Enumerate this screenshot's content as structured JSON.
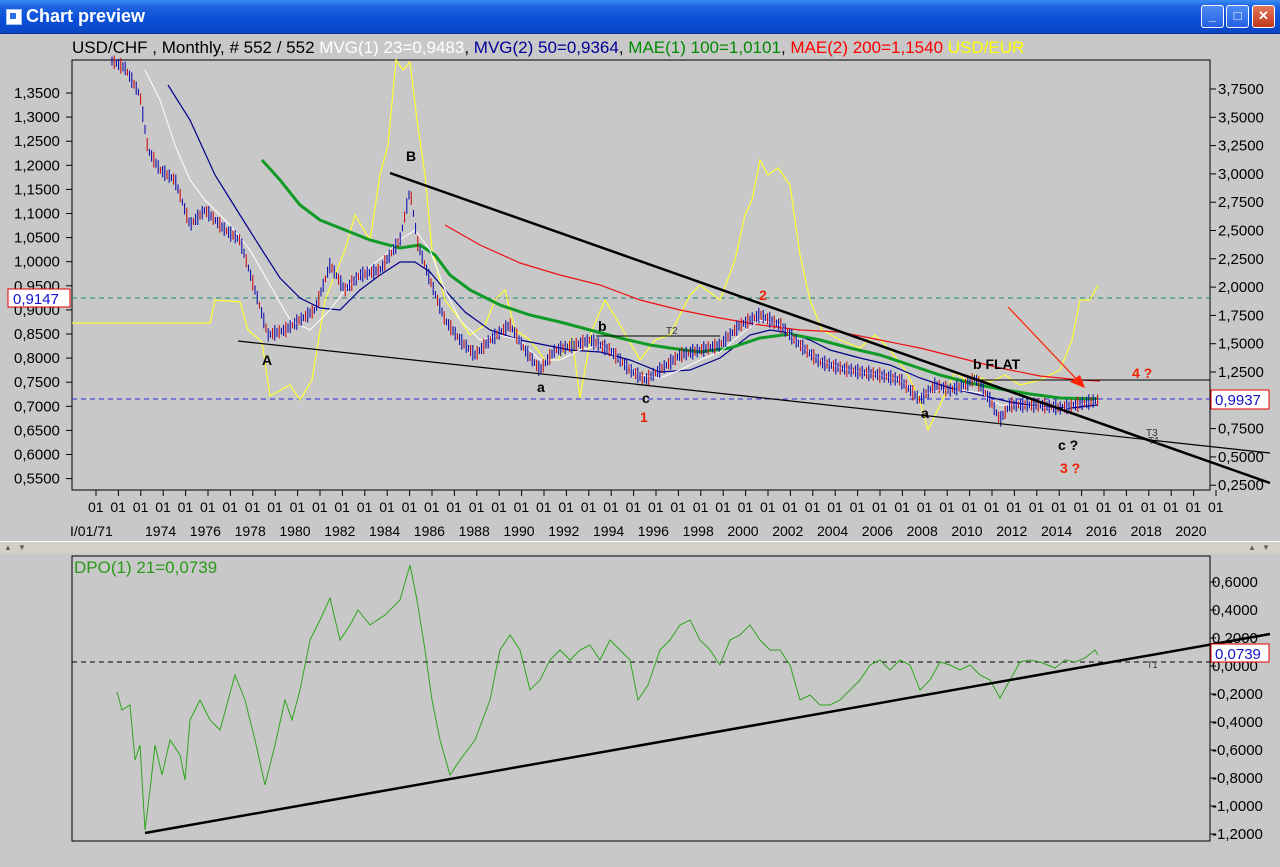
{
  "window": {
    "title": "Chart preview"
  },
  "header": {
    "symbol": "USD/CHF",
    "timeframe": "Monthly, # 552 / 552",
    "indicators": [
      {
        "text": "MVG(1) 23=0,9483",
        "color": "#ffffff"
      },
      {
        "text": "MVG(2) 50=0,9364",
        "color": "#000099"
      },
      {
        "text": "MAE(1) 100=1,0101",
        "color": "#008a00"
      },
      {
        "text": "MAE(2) 200=1,1540",
        "color": "#ff0000"
      },
      {
        "text": "USD/EUR",
        "color": "#ffff00"
      }
    ]
  },
  "main_chart": {
    "left_ticks": [
      "1,3500",
      "1,3000",
      "1,2500",
      "1,2000",
      "1,1500",
      "1,1000",
      "1,0500",
      "1,0000",
      "0,9500",
      "0,9000",
      "0,8500",
      "0,8000",
      "0,7500",
      "0,7000",
      "0,6500",
      "0,6000",
      "0,5500"
    ],
    "right_ticks": [
      "3,7500",
      "3,5000",
      "3,2500",
      "3,0000",
      "2,7500",
      "2,5000",
      "2,2500",
      "2,0000",
      "1,7500",
      "1,5000",
      "1,2500",
      "1,0000",
      "0,7500",
      "0,5000",
      "0,2500"
    ],
    "price_badge_left": "0,9147",
    "price_badge_right": "0,9937",
    "month_ticks": [
      "01",
      "01",
      "01",
      "01",
      "01",
      "01",
      "01",
      "01",
      "01",
      "01",
      "01",
      "01",
      "01",
      "01",
      "01",
      "01",
      "01",
      "01",
      "01",
      "01",
      "01",
      "01",
      "01",
      "01",
      "01",
      "01",
      "01",
      "01",
      "01",
      "01",
      "01",
      "01",
      "01",
      "01",
      "01",
      "01",
      "01",
      "01",
      "01",
      "01",
      "01",
      "01",
      "01",
      "01",
      "01",
      "01",
      "01",
      "01",
      "01",
      "01",
      "01"
    ],
    "first_date": "I/01/71",
    "year_labels": [
      "1974",
      "1976",
      "1978",
      "1980",
      "1982",
      "1984",
      "1986",
      "1988",
      "1990",
      "1992",
      "1994",
      "1996",
      "1998",
      "2000",
      "2002",
      "2004",
      "2006",
      "2008",
      "2010",
      "2012",
      "2014",
      "2016",
      "2018",
      "2020"
    ],
    "annotations": {
      "A": "A",
      "B": "B",
      "a1": "a",
      "b1": "b",
      "c1": "c",
      "w1": "1",
      "w2": "2",
      "a2": "a",
      "bflat": "b FLAT",
      "cq": "c ?",
      "w3q": "3 ?",
      "w4q": "4 ?",
      "t2": "T2",
      "t3": "T3",
      "t1": "T1"
    }
  },
  "oscillator": {
    "label": "DPO(1) 21=0,0739",
    "label_color": "#2b9a1a",
    "ticks": [
      "0,6000",
      "0,4000",
      "0,2000",
      "0,0000",
      "-0,2000",
      "-0,4000",
      "-0,6000",
      "-0,8000",
      "-1,0000",
      "-1,2000"
    ],
    "value_badge": "0,0739",
    "t1": "T1"
  }
}
